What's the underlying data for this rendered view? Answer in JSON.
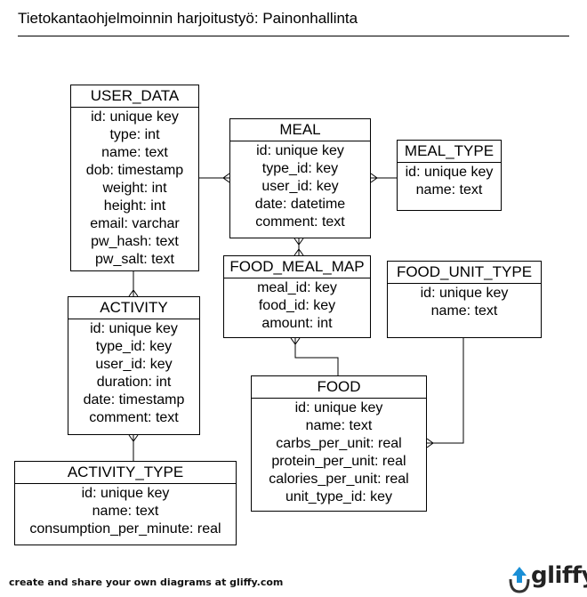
{
  "title": "Tietokantaohjelmoinnin harjoitustyö: Painonhallinta",
  "entities": {
    "user_data": {
      "name": "USER_DATA",
      "fields": [
        "id: unique key",
        "type: int",
        "name: text",
        "dob: timestamp",
        "weight: int",
        "height: int",
        "email: varchar",
        "pw_hash: text",
        "pw_salt: text"
      ]
    },
    "meal": {
      "name": "MEAL",
      "fields": [
        "id: unique key",
        "type_id: key",
        "user_id: key",
        "date: datetime",
        "comment: text"
      ]
    },
    "meal_type": {
      "name": "MEAL_TYPE",
      "fields": [
        "id: unique key",
        "name: text"
      ]
    },
    "food_meal_map": {
      "name": "FOOD_MEAL_MAP",
      "fields": [
        "meal_id: key",
        "food_id: key",
        "amount: int"
      ]
    },
    "food_unit_type": {
      "name": "FOOD_UNIT_TYPE",
      "fields": [
        "id: unique key",
        "name: text"
      ]
    },
    "activity": {
      "name": "ACTIVITY",
      "fields": [
        "id: unique key",
        "type_id: key",
        "user_id: key",
        "duration: int",
        "date: timestamp",
        "comment: text"
      ]
    },
    "food": {
      "name": "FOOD",
      "fields": [
        "id: unique key",
        "name: text",
        "carbs_per_unit: real",
        "protein_per_unit: real",
        "calories_per_unit: real",
        "unit_type_id: key"
      ]
    },
    "activity_type": {
      "name": "ACTIVITY_TYPE",
      "fields": [
        "id: unique key",
        "name: text",
        "consumption_per_minute: real"
      ]
    }
  },
  "footer": {
    "text": "create and share your own diagrams at gliffy.com",
    "brand": "gliffy"
  }
}
